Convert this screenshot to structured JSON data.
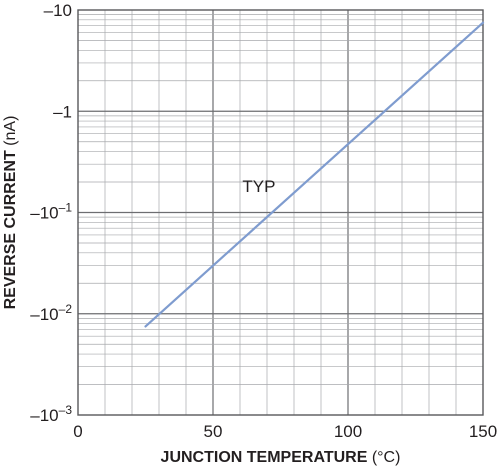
{
  "chart_data": {
    "type": "line",
    "title": "",
    "xlabel": "JUNCTION TEMPERATURE (°C)",
    "xlabel_parts": {
      "bold": "JUNCTION TEMPERATURE",
      "normal": " (°C)"
    },
    "ylabel": "REVERSE CURRENT (nA)",
    "ylabel_parts": {
      "bold": "REVERSE CURRENT",
      "normal": " (nA)"
    },
    "xlim": [
      0,
      150
    ],
    "ylim": [
      -0.001,
      -10
    ],
    "yscale": "log",
    "grid": true,
    "x_ticks": [
      {
        "value": 0,
        "label": "0"
      },
      {
        "value": 50,
        "label": "50"
      },
      {
        "value": 100,
        "label": "100"
      },
      {
        "value": 150,
        "label": "150"
      }
    ],
    "y_ticks": [
      {
        "value": -0.001,
        "base": "–10",
        "exp": "–3"
      },
      {
        "value": -0.01,
        "base": "–10",
        "exp": "–2"
      },
      {
        "value": -0.1,
        "base": "–10",
        "exp": "–1"
      },
      {
        "value": -1,
        "base": "–1",
        "exp": ""
      },
      {
        "value": -10,
        "base": "–10",
        "exp": ""
      }
    ],
    "series": [
      {
        "x": [
          25,
          150
        ],
        "y": [
          -0.0075,
          -7.5
        ],
        "color": "#7f9ccf"
      }
    ],
    "annotations": [
      {
        "text": "TYP",
        "x": 67,
        "y": -0.16
      }
    ],
    "colors": {
      "grid_minor": "#a7a9ac",
      "grid_major": "#6d6e71",
      "frame": "#58595b",
      "text": "#231f20"
    }
  }
}
